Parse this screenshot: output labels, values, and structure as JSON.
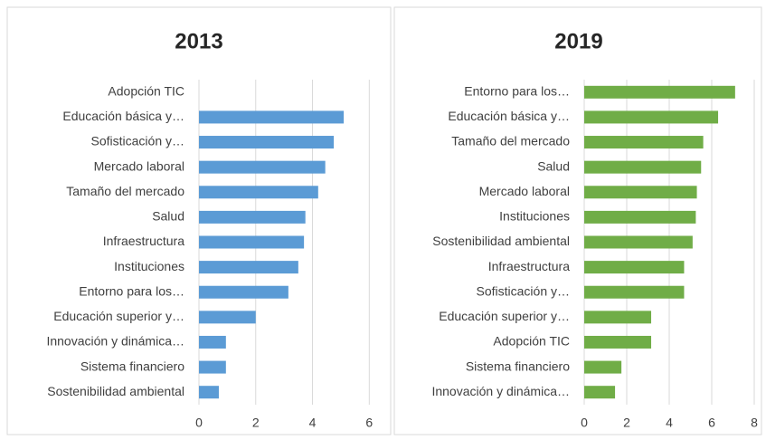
{
  "chart_data": [
    {
      "type": "barh",
      "title": "2013",
      "color": "#5b9bd5",
      "categories": [
        "Adopción TIC",
        "Educación básica y…",
        "Sofisticación y…",
        "Mercado laboral",
        "Tamaño del mercado",
        "Salud",
        "Infraestructura",
        "Instituciones",
        "Entorno para los…",
        "Educación superior y…",
        "Innovación y dinámica…",
        "Sistema financiero",
        "Sostenibilidad ambiental"
      ],
      "values": [
        0,
        5.1,
        4.75,
        4.45,
        4.2,
        3.75,
        3.7,
        3.5,
        3.15,
        2.0,
        0.95,
        0.95,
        0.7
      ],
      "xlim": [
        0,
        6.5
      ],
      "xticks": [
        0,
        2,
        4,
        6
      ],
      "grid": true
    },
    {
      "type": "barh",
      "title": "2019",
      "color": "#70ad47",
      "categories": [
        "Entorno para los…",
        "Educación básica y…",
        "Tamaño del mercado",
        "Salud",
        "Mercado laboral",
        "Instituciones",
        "Sostenibilidad ambiental",
        "Infraestructura",
        "Sofisticación y…",
        "Educación superior y…",
        "Adopción TIC",
        "Sistema financiero",
        "Innovación y dinámica…"
      ],
      "values": [
        7.1,
        6.3,
        5.6,
        5.5,
        5.3,
        5.25,
        5.1,
        4.7,
        4.7,
        3.15,
        3.15,
        1.75,
        1.45
      ],
      "xlim": [
        0,
        8
      ],
      "xticks": [
        0,
        2,
        4,
        6,
        8
      ],
      "grid": true
    }
  ]
}
